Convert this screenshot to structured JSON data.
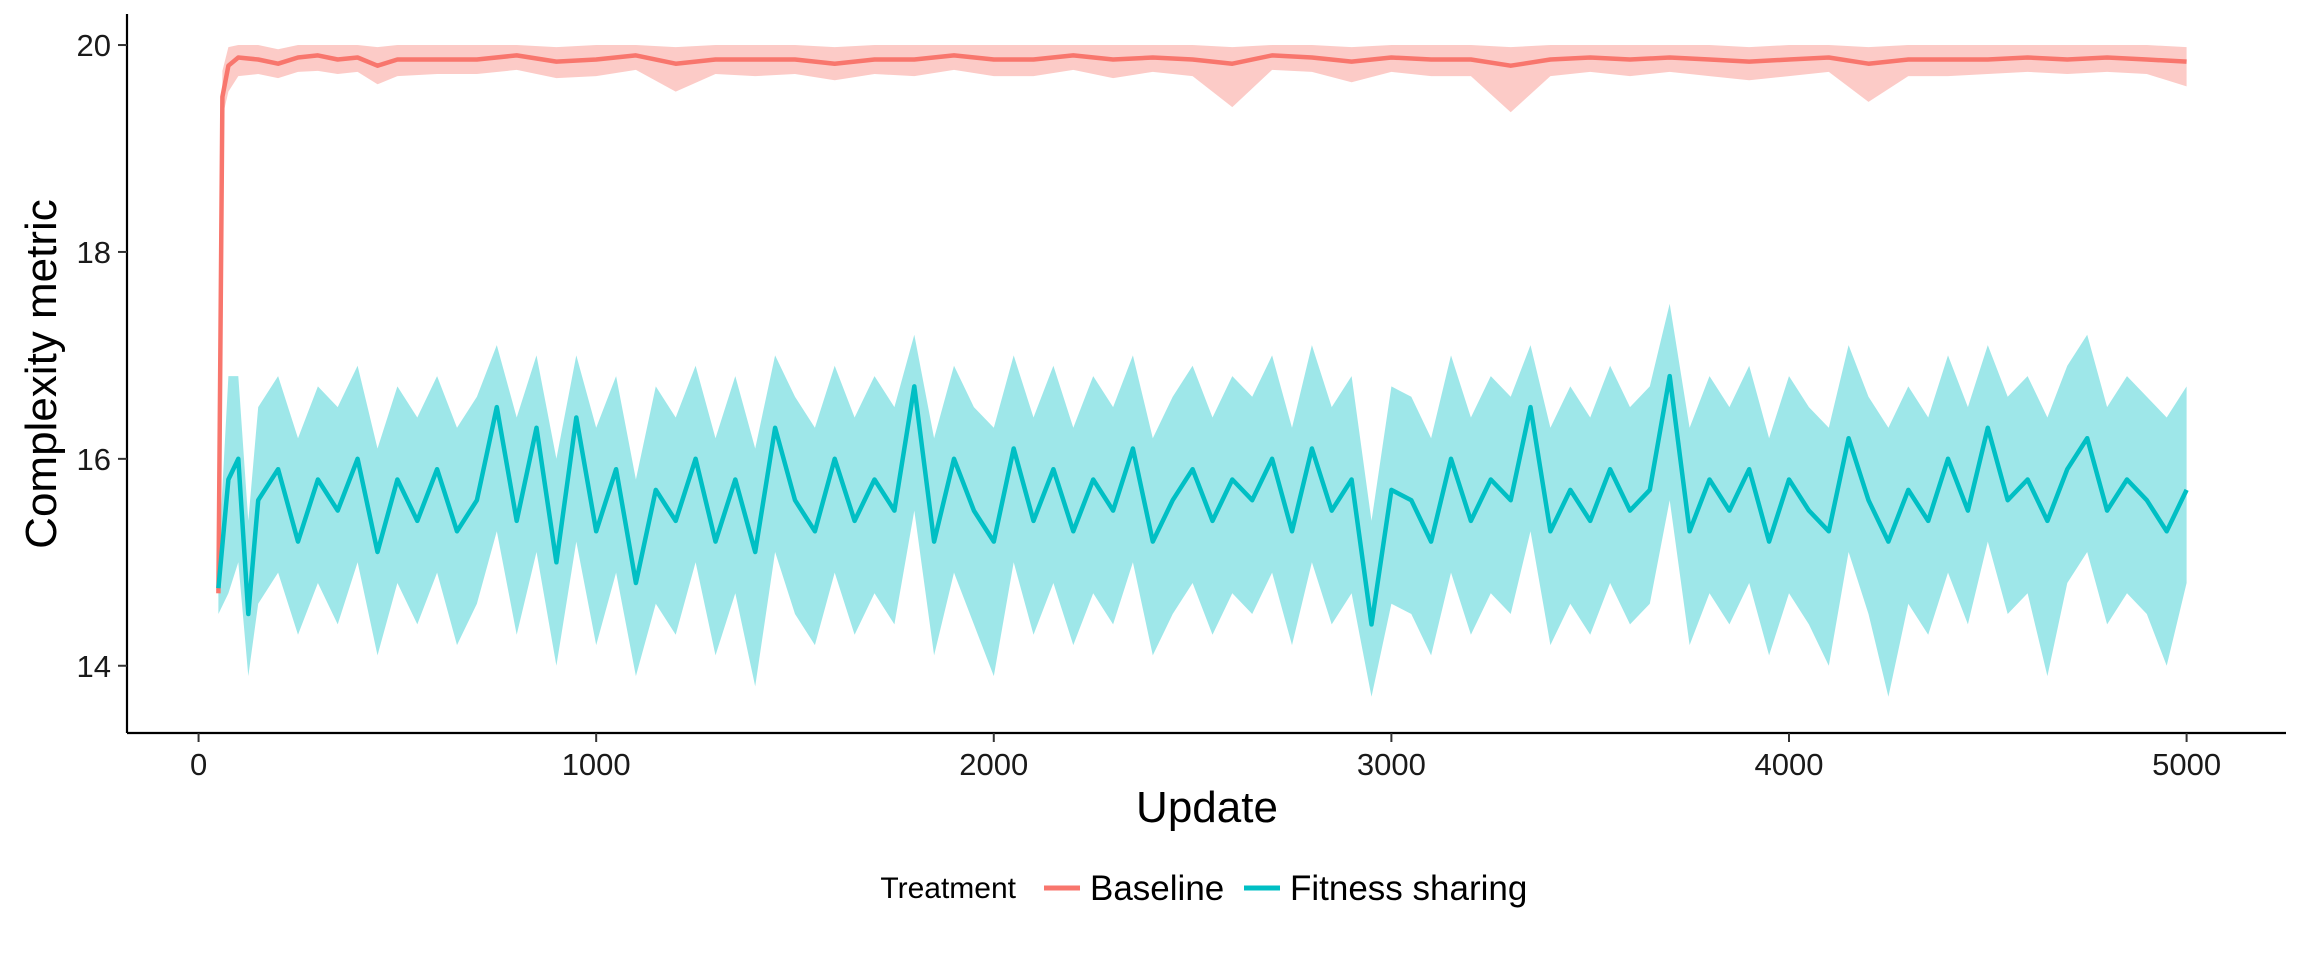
{
  "chart_data": {
    "type": "line",
    "xlabel": "Update",
    "ylabel": "Complexity metric",
    "xlim": [
      -180,
      5250
    ],
    "ylim": [
      13.35,
      20.3
    ],
    "x_ticks": [
      0,
      1000,
      2000,
      3000,
      4000,
      5000
    ],
    "y_ticks": [
      14,
      16,
      18,
      20
    ],
    "grid": false,
    "legend": {
      "title": "Treatment",
      "position": "bottom"
    },
    "series": [
      {
        "name": "Baseline",
        "color": "#F8766D",
        "ribbon_color": "#F8766D",
        "x": [
          50,
          60,
          75,
          100,
          150,
          200,
          250,
          300,
          350,
          400,
          450,
          500,
          600,
          700,
          800,
          900,
          1000,
          1100,
          1200,
          1300,
          1400,
          1500,
          1600,
          1700,
          1800,
          1900,
          2000,
          2100,
          2200,
          2300,
          2400,
          2500,
          2600,
          2700,
          2800,
          2900,
          3000,
          3100,
          3200,
          3300,
          3400,
          3500,
          3600,
          3700,
          3800,
          3900,
          4000,
          4100,
          4200,
          4300,
          4400,
          4500,
          4600,
          4700,
          4800,
          4900,
          5000
        ],
        "y": [
          14.7,
          19.5,
          19.8,
          19.88,
          19.86,
          19.82,
          19.88,
          19.9,
          19.86,
          19.88,
          19.8,
          19.86,
          19.86,
          19.86,
          19.9,
          19.84,
          19.86,
          19.9,
          19.82,
          19.86,
          19.86,
          19.86,
          19.82,
          19.86,
          19.86,
          19.9,
          19.86,
          19.86,
          19.9,
          19.86,
          19.88,
          19.86,
          19.82,
          19.9,
          19.88,
          19.84,
          19.88,
          19.86,
          19.86,
          19.8,
          19.86,
          19.88,
          19.86,
          19.88,
          19.86,
          19.84,
          19.86,
          19.88,
          19.82,
          19.86,
          19.86,
          19.86,
          19.88,
          19.86,
          19.88,
          19.86,
          19.84
        ],
        "ymin": [
          14.65,
          19.3,
          19.55,
          19.7,
          19.72,
          19.68,
          19.74,
          19.75,
          19.72,
          19.74,
          19.62,
          19.7,
          19.72,
          19.72,
          19.76,
          19.68,
          19.7,
          19.76,
          19.55,
          19.72,
          19.7,
          19.72,
          19.66,
          19.72,
          19.7,
          19.76,
          19.7,
          19.7,
          19.76,
          19.68,
          19.74,
          19.7,
          19.4,
          19.76,
          19.74,
          19.64,
          19.74,
          19.7,
          19.7,
          19.35,
          19.7,
          19.74,
          19.7,
          19.74,
          19.7,
          19.66,
          19.7,
          19.74,
          19.45,
          19.7,
          19.7,
          19.72,
          19.74,
          19.72,
          19.74,
          19.72,
          19.6
        ],
        "ymax": [
          14.75,
          19.75,
          19.98,
          20.0,
          20.0,
          19.96,
          20.0,
          20.0,
          20.0,
          20.0,
          19.98,
          20.0,
          20.0,
          20.0,
          20.0,
          19.98,
          20.0,
          20.0,
          19.98,
          20.0,
          20.0,
          20.0,
          19.98,
          20.0,
          20.0,
          20.0,
          20.0,
          20.0,
          20.0,
          20.0,
          20.0,
          20.0,
          19.98,
          20.0,
          20.0,
          19.98,
          20.0,
          20.0,
          20.0,
          19.98,
          20.0,
          20.0,
          20.0,
          20.0,
          20.0,
          19.98,
          20.0,
          20.0,
          19.98,
          20.0,
          20.0,
          20.0,
          20.0,
          20.0,
          20.0,
          20.0,
          19.98
        ]
      },
      {
        "name": "Fitness sharing",
        "color": "#00BFC4",
        "ribbon_color": "#00BFC4",
        "x": [
          50,
          75,
          100,
          125,
          150,
          200,
          250,
          300,
          350,
          400,
          450,
          500,
          550,
          600,
          650,
          700,
          750,
          800,
          850,
          900,
          950,
          1000,
          1050,
          1100,
          1150,
          1200,
          1250,
          1300,
          1350,
          1400,
          1450,
          1500,
          1550,
          1600,
          1650,
          1700,
          1750,
          1800,
          1850,
          1900,
          1950,
          2000,
          2050,
          2100,
          2150,
          2200,
          2250,
          2300,
          2350,
          2400,
          2450,
          2500,
          2550,
          2600,
          2650,
          2700,
          2750,
          2800,
          2850,
          2900,
          2950,
          3000,
          3050,
          3100,
          3150,
          3200,
          3250,
          3300,
          3350,
          3400,
          3450,
          3500,
          3550,
          3600,
          3650,
          3700,
          3750,
          3800,
          3850,
          3900,
          3950,
          4000,
          4050,
          4100,
          4150,
          4200,
          4250,
          4300,
          4350,
          4400,
          4450,
          4500,
          4550,
          4600,
          4650,
          4700,
          4750,
          4800,
          4850,
          4900,
          4950,
          5000
        ],
        "y": [
          14.75,
          15.8,
          16.0,
          14.5,
          15.6,
          15.9,
          15.2,
          15.8,
          15.5,
          16.0,
          15.1,
          15.8,
          15.4,
          15.9,
          15.3,
          15.6,
          16.5,
          15.4,
          16.3,
          15.0,
          16.4,
          15.3,
          15.9,
          14.8,
          15.7,
          15.4,
          16.0,
          15.2,
          15.8,
          15.1,
          16.3,
          15.6,
          15.3,
          16.0,
          15.4,
          15.8,
          15.5,
          16.7,
          15.2,
          16.0,
          15.5,
          15.2,
          16.1,
          15.4,
          15.9,
          15.3,
          15.8,
          15.5,
          16.1,
          15.2,
          15.6,
          15.9,
          15.4,
          15.8,
          15.6,
          16.0,
          15.3,
          16.1,
          15.5,
          15.8,
          14.4,
          15.7,
          15.6,
          15.2,
          16.0,
          15.4,
          15.8,
          15.6,
          16.5,
          15.3,
          15.7,
          15.4,
          15.9,
          15.5,
          15.7,
          16.8,
          15.3,
          15.8,
          15.5,
          15.9,
          15.2,
          15.8,
          15.5,
          15.3,
          16.2,
          15.6,
          15.2,
          15.7,
          15.4,
          16.0,
          15.5,
          16.3,
          15.6,
          15.8,
          15.4,
          15.9,
          16.2,
          15.5,
          15.8,
          15.6,
          15.3,
          15.7
        ],
        "ymin": [
          14.5,
          14.7,
          15.0,
          13.9,
          14.6,
          14.9,
          14.3,
          14.8,
          14.4,
          15.0,
          14.1,
          14.8,
          14.4,
          14.9,
          14.2,
          14.6,
          15.3,
          14.3,
          15.1,
          14.0,
          15.2,
          14.2,
          14.9,
          13.9,
          14.6,
          14.3,
          15.0,
          14.1,
          14.7,
          13.8,
          15.1,
          14.5,
          14.2,
          14.9,
          14.3,
          14.7,
          14.4,
          15.5,
          14.1,
          14.9,
          14.4,
          13.9,
          15.0,
          14.3,
          14.8,
          14.2,
          14.7,
          14.4,
          15.0,
          14.1,
          14.5,
          14.8,
          14.3,
          14.7,
          14.5,
          14.9,
          14.2,
          15.0,
          14.4,
          14.7,
          13.7,
          14.6,
          14.5,
          14.1,
          14.9,
          14.3,
          14.7,
          14.5,
          15.3,
          14.2,
          14.6,
          14.3,
          14.8,
          14.4,
          14.6,
          15.6,
          14.2,
          14.7,
          14.4,
          14.8,
          14.1,
          14.7,
          14.4,
          14.0,
          15.1,
          14.5,
          13.7,
          14.6,
          14.3,
          14.9,
          14.4,
          15.2,
          14.5,
          14.7,
          13.9,
          14.8,
          15.1,
          14.4,
          14.7,
          14.5,
          14.0,
          14.8
        ],
        "ymax": [
          15.0,
          16.8,
          16.8,
          15.4,
          16.5,
          16.8,
          16.2,
          16.7,
          16.5,
          16.9,
          16.1,
          16.7,
          16.4,
          16.8,
          16.3,
          16.6,
          17.1,
          16.4,
          17.0,
          16.0,
          17.0,
          16.3,
          16.8,
          15.8,
          16.7,
          16.4,
          16.9,
          16.2,
          16.8,
          16.1,
          17.0,
          16.6,
          16.3,
          16.9,
          16.4,
          16.8,
          16.5,
          17.2,
          16.2,
          16.9,
          16.5,
          16.3,
          17.0,
          16.4,
          16.9,
          16.3,
          16.8,
          16.5,
          17.0,
          16.2,
          16.6,
          16.9,
          16.4,
          16.8,
          16.6,
          17.0,
          16.3,
          17.1,
          16.5,
          16.8,
          15.4,
          16.7,
          16.6,
          16.2,
          17.0,
          16.4,
          16.8,
          16.6,
          17.1,
          16.3,
          16.7,
          16.4,
          16.9,
          16.5,
          16.7,
          17.5,
          16.3,
          16.8,
          16.5,
          16.9,
          16.2,
          16.8,
          16.5,
          16.3,
          17.1,
          16.6,
          16.3,
          16.7,
          16.4,
          17.0,
          16.5,
          17.1,
          16.6,
          16.8,
          16.4,
          16.9,
          17.2,
          16.5,
          16.8,
          16.6,
          16.4,
          16.7
        ]
      }
    ]
  }
}
